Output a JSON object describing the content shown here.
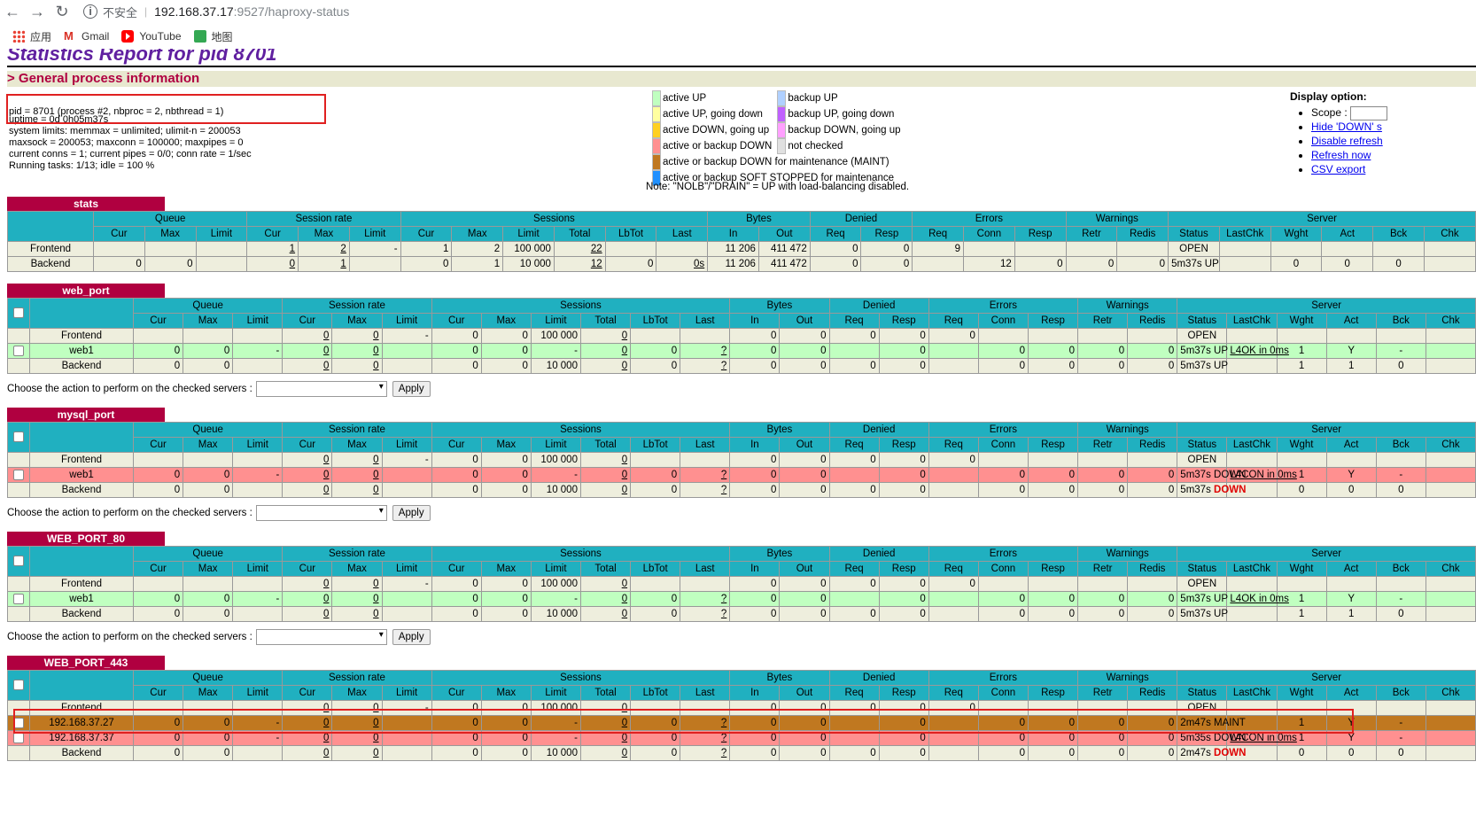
{
  "browser": {
    "back_icon": "arrow-left-icon",
    "forward_icon": "arrow-right-icon",
    "reload_icon": "reload-icon",
    "insecure_label": "不安全",
    "url_host": "192.168.37.17",
    "url_path": ":9527/haproxy-status",
    "bookmarks": [
      {
        "label": "应用",
        "icon": "apps-grid-icon"
      },
      {
        "label": "Gmail",
        "icon": "gmail-icon"
      },
      {
        "label": "YouTube",
        "icon": "youtube-icon"
      },
      {
        "label": "地图",
        "icon": "maps-icon"
      }
    ]
  },
  "page": {
    "title": "Statistics Report for pid 8701",
    "section_title": "> General process information",
    "process_lines": [
      "pid = 8701 (process #2, nbproc = 2, nbthread = 1)",
      "uptime = 0d 0h05m37s",
      "system limits: memmax = unlimited; ulimit-n = 200053",
      "maxsock = 200053; maxconn = 100000; maxpipes = 0",
      "current conns = 1; current pipes = 0/0; conn rate = 1/sec",
      "Running tasks: 1/13; idle = 100 %"
    ],
    "legend": [
      {
        "color": "#c0ffc0",
        "label": "active UP"
      },
      {
        "color": "#ffffa0",
        "label": "active UP, going down"
      },
      {
        "color": "#ffd020",
        "label": "active DOWN, going up"
      },
      {
        "color": "#ff9090",
        "label": "active or backup DOWN"
      },
      {
        "color": "#c07820",
        "label": "active or backup DOWN for maintenance (MAINT)"
      },
      {
        "color": "#2090ff",
        "label": "active or backup SOFT STOPPED for maintenance"
      },
      {
        "color": "#b0d0ff",
        "label": "backup UP"
      },
      {
        "color": "#c060ff",
        "label": "backup UP, going down"
      },
      {
        "color": "#ffa0ff",
        "label": "backup DOWN, going up"
      },
      {
        "color": "#e0e0e0",
        "label": "not checked"
      }
    ],
    "legend_note": "Note: \"NOLB\"/\"DRAIN\" = UP with load-balancing disabled.",
    "display_option_title": "Display option:",
    "display_options": {
      "scope_label": "Scope :",
      "links": [
        "Hide 'DOWN' s",
        "Disable refresh",
        "Refresh now",
        "CSV export"
      ]
    },
    "action_label": "Choose the action to perform on the checked servers :",
    "apply_label": "Apply"
  },
  "headers": {
    "groups": [
      "Queue",
      "Session rate",
      "Sessions",
      "Bytes",
      "Denied",
      "Errors",
      "Warnings",
      "Server"
    ],
    "cols": [
      "Cur",
      "Max",
      "Limit",
      "Cur",
      "Max",
      "Limit",
      "Cur",
      "Max",
      "Limit",
      "Total",
      "LbTot",
      "Last",
      "In",
      "Out",
      "Req",
      "Resp",
      "Req",
      "Conn",
      "Resp",
      "Retr",
      "Redis",
      "Status",
      "LastChk",
      "Wght",
      "Act",
      "Bck",
      "Chk"
    ]
  },
  "proxies": [
    {
      "name": "stats",
      "checkbox": false,
      "rows": [
        {
          "name": "Frontend",
          "cls": "fe",
          "v": [
            "",
            "",
            "",
            "1",
            "2",
            "-",
            "1",
            "2",
            "100 000",
            "22",
            "",
            "",
            "11 206",
            "411 472",
            "0",
            "0",
            "9",
            "",
            "",
            "",
            "",
            "OPEN",
            "",
            "",
            "",
            "",
            ""
          ]
        },
        {
          "name": "Backend",
          "cls": "be",
          "v": [
            "0",
            "0",
            "",
            "0",
            "1",
            "",
            "0",
            "1",
            "10 000",
            "12",
            "0",
            "0s",
            "11 206",
            "411 472",
            "0",
            "0",
            "",
            "12",
            "0",
            "0",
            "0",
            "5m37s UP",
            "",
            "0",
            "0",
            "0",
            ""
          ]
        }
      ]
    },
    {
      "name": "web_port",
      "checkbox": true,
      "rows": [
        {
          "name": "Frontend",
          "cls": "fe",
          "v": [
            "",
            "",
            "",
            "0",
            "0",
            "-",
            "0",
            "0",
            "100 000",
            "0",
            "",
            "",
            "0",
            "0",
            "0",
            "0",
            "0",
            "",
            "",
            "",
            "",
            "OPEN",
            "",
            "",
            "",
            "",
            ""
          ]
        },
        {
          "name": "web1",
          "cls": "up",
          "v": [
            "0",
            "0",
            "-",
            "0",
            "0",
            "",
            "0",
            "0",
            "-",
            "0",
            "0",
            "?",
            "0",
            "0",
            "",
            "0",
            "",
            "0",
            "0",
            "0",
            "0",
            "5m37s UP",
            "L4OK in 0ms",
            "1",
            "Y",
            "-",
            ""
          ]
        },
        {
          "name": "Backend",
          "cls": "be",
          "v": [
            "0",
            "0",
            "",
            "0",
            "0",
            "",
            "0",
            "0",
            "10 000",
            "0",
            "0",
            "?",
            "0",
            "0",
            "0",
            "0",
            "",
            "0",
            "0",
            "0",
            "0",
            "5m37s UP",
            "",
            "1",
            "1",
            "0",
            ""
          ]
        }
      ]
    },
    {
      "name": "mysql_port",
      "checkbox": true,
      "rows": [
        {
          "name": "Frontend",
          "cls": "fe",
          "v": [
            "",
            "",
            "",
            "0",
            "0",
            "-",
            "0",
            "0",
            "100 000",
            "0",
            "",
            "",
            "0",
            "0",
            "0",
            "0",
            "0",
            "",
            "",
            "",
            "",
            "OPEN",
            "",
            "",
            "",
            "",
            ""
          ]
        },
        {
          "name": "web1",
          "cls": "down",
          "v": [
            "0",
            "0",
            "-",
            "0",
            "0",
            "",
            "0",
            "0",
            "-",
            "0",
            "0",
            "?",
            "0",
            "0",
            "",
            "0",
            "",
            "0",
            "0",
            "0",
            "0",
            "5m37s DOWN",
            "L4CON in 0ms",
            "1",
            "Y",
            "-",
            ""
          ]
        },
        {
          "name": "Backend",
          "cls": "be",
          "v": [
            "0",
            "0",
            "",
            "0",
            "0",
            "",
            "0",
            "0",
            "10 000",
            "0",
            "0",
            "?",
            "0",
            "0",
            "0",
            "0",
            "",
            "0",
            "0",
            "0",
            "0",
            "5m37s DOWN",
            "",
            "0",
            "0",
            "0",
            ""
          ]
        }
      ]
    },
    {
      "name": "WEB_PORT_80",
      "checkbox": true,
      "rows": [
        {
          "name": "Frontend",
          "cls": "fe",
          "v": [
            "",
            "",
            "",
            "0",
            "0",
            "-",
            "0",
            "0",
            "100 000",
            "0",
            "",
            "",
            "0",
            "0",
            "0",
            "0",
            "0",
            "",
            "",
            "",
            "",
            "OPEN",
            "",
            "",
            "",
            "",
            ""
          ]
        },
        {
          "name": "web1",
          "cls": "up",
          "v": [
            "0",
            "0",
            "-",
            "0",
            "0",
            "",
            "0",
            "0",
            "-",
            "0",
            "0",
            "?",
            "0",
            "0",
            "",
            "0",
            "",
            "0",
            "0",
            "0",
            "0",
            "5m37s UP",
            "L4OK in 0ms",
            "1",
            "Y",
            "-",
            ""
          ]
        },
        {
          "name": "Backend",
          "cls": "be",
          "v": [
            "0",
            "0",
            "",
            "0",
            "0",
            "",
            "0",
            "0",
            "10 000",
            "0",
            "0",
            "?",
            "0",
            "0",
            "0",
            "0",
            "",
            "0",
            "0",
            "0",
            "0",
            "5m37s UP",
            "",
            "1",
            "1",
            "0",
            ""
          ]
        }
      ]
    },
    {
      "name": "WEB_PORT_443",
      "checkbox": true,
      "rows": [
        {
          "name": "Frontend",
          "cls": "fe",
          "v": [
            "",
            "",
            "",
            "0",
            "0",
            "-",
            "0",
            "0",
            "100 000",
            "0",
            "",
            "",
            "0",
            "0",
            "0",
            "0",
            "0",
            "",
            "",
            "",
            "",
            "OPEN",
            "",
            "",
            "",
            "",
            ""
          ]
        },
        {
          "name": "192.168.37.27",
          "cls": "maint",
          "v": [
            "0",
            "0",
            "-",
            "0",
            "0",
            "",
            "0",
            "0",
            "-",
            "0",
            "0",
            "?",
            "0",
            "0",
            "",
            "0",
            "",
            "0",
            "0",
            "0",
            "0",
            "2m47s MAINT",
            "",
            "1",
            "Y",
            "-",
            ""
          ]
        },
        {
          "name": "192.168.37.37",
          "cls": "down",
          "v": [
            "0",
            "0",
            "-",
            "0",
            "0",
            "",
            "0",
            "0",
            "-",
            "0",
            "0",
            "?",
            "0",
            "0",
            "",
            "0",
            "",
            "0",
            "0",
            "0",
            "0",
            "5m35s DOWN",
            "L4CON in 0ms",
            "1",
            "Y",
            "-",
            ""
          ]
        },
        {
          "name": "Backend",
          "cls": "be",
          "v": [
            "0",
            "0",
            "",
            "0",
            "0",
            "",
            "0",
            "0",
            "10 000",
            "0",
            "0",
            "?",
            "0",
            "0",
            "0",
            "0",
            "",
            "0",
            "0",
            "0",
            "0",
            "2m47s DOWN",
            "",
            "0",
            "0",
            "0",
            ""
          ]
        }
      ]
    }
  ]
}
